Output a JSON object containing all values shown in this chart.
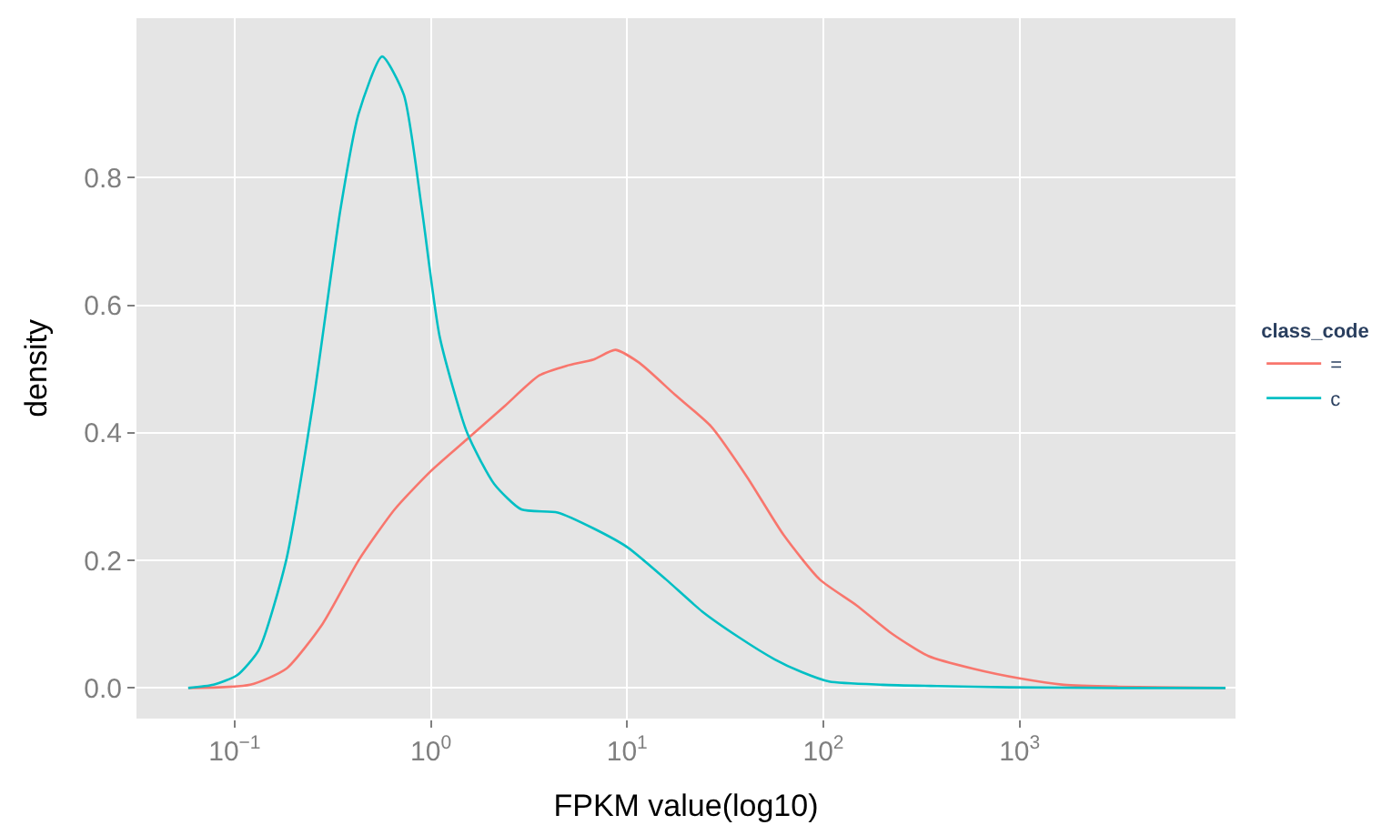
{
  "chart_data": {
    "type": "line",
    "xlabel": "FPKM value(log10)",
    "ylabel": "density",
    "legend_title": "class_code",
    "log": "x",
    "grid": true,
    "legend": "right",
    "xlim": [
      0.0316,
      12600
    ],
    "xticks": [
      {
        "value": 0.1,
        "label": "10$^{−1}$"
      },
      {
        "value": 1,
        "label": "10$^{0}$"
      },
      {
        "value": 10,
        "label": "10$^{1}$"
      },
      {
        "value": 100,
        "label": "10$^{2}$"
      },
      {
        "value": 1000,
        "label": "10$^{3}$"
      }
    ],
    "ylim": [
      -0.048,
      1.05
    ],
    "yticks": [
      {
        "value": 0,
        "label": "0.0"
      },
      0.2,
      0.4,
      0.6,
      0.8
    ],
    "series": [
      {
        "name": "=",
        "color": "#f8766d",
        "x": [
          0.058,
          0.12,
          0.183,
          0.28,
          0.428,
          0.654,
          1.0,
          1.53,
          2.34,
          3.57,
          4.91,
          6.75,
          8.71,
          11.5,
          17.5,
          26.8,
          41.0,
          62.7,
          95.9,
          147,
          224,
          343,
          582,
          1000,
          1680,
          3180,
          11200
        ],
        "values": [
          0,
          0.005,
          0.03,
          0.1,
          0.2,
          0.28,
          0.34,
          0.39,
          0.44,
          0.49,
          0.505,
          0.515,
          0.53,
          0.51,
          0.46,
          0.41,
          0.33,
          0.24,
          0.17,
          0.13,
          0.085,
          0.05,
          0.03,
          0.015,
          0.005,
          0.002,
          0
        ]
      },
      {
        "name": "c",
        "color": "#00bfc4",
        "x": [
          0.058,
          0.078,
          0.103,
          0.133,
          0.183,
          0.252,
          0.346,
          0.428,
          0.564,
          0.728,
          0.9,
          1.11,
          1.53,
          2.1,
          2.89,
          4.42,
          6.75,
          10.1,
          15.8,
          24.1,
          36.9,
          56.4,
          77.4,
          107,
          201,
          381,
          889,
          3180,
          11200
        ],
        "values": [
          0,
          0.005,
          0.02,
          0.06,
          0.2,
          0.45,
          0.75,
          0.9,
          0.99,
          0.93,
          0.75,
          0.55,
          0.4,
          0.32,
          0.28,
          0.275,
          0.25,
          0.22,
          0.17,
          0.12,
          0.08,
          0.045,
          0.025,
          0.01,
          0.005,
          0.003,
          0.001,
          0,
          0
        ]
      }
    ]
  }
}
